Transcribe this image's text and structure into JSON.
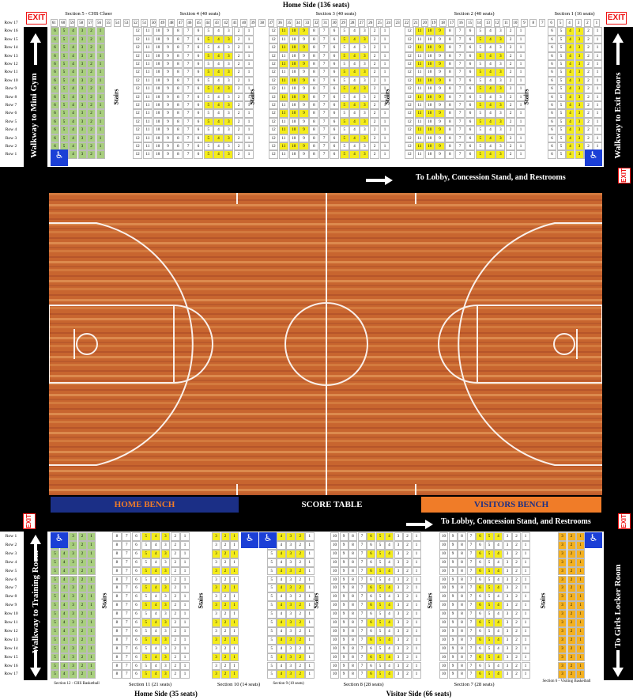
{
  "top": {
    "title": "Home Side (136 seats)",
    "sections": [
      {
        "label": "Section 5 - CHS Cheer"
      },
      {
        "label": "Section 4 (40 seats)"
      },
      {
        "label": "Section 3 (40 seats)"
      },
      {
        "label": "Section 2 (40 seats)"
      },
      {
        "label": "Section 1 (16 seats)"
      }
    ],
    "rows": [
      "Row 17",
      "Row 16",
      "Row 15",
      "Row 14",
      "Row 13",
      "Row 12",
      "Row 11",
      "Row 10",
      "Row 9",
      "Row 8",
      "Row 7",
      "Row 6",
      "Row 5",
      "Row 4",
      "Row 3",
      "Row 2",
      "Row 1"
    ],
    "seat_numbers": [
      "61",
      "60",
      "59",
      "58",
      "57",
      "56",
      "55",
      "54",
      "53",
      "52",
      "51",
      "50",
      "49",
      "48",
      "47",
      "46",
      "45",
      "44",
      "43",
      "42",
      "41",
      "40",
      "39",
      "38",
      "37",
      "36",
      "35",
      "34",
      "33",
      "32",
      "31",
      "30",
      "29",
      "28",
      "27",
      "26",
      "25",
      "24",
      "23",
      "22",
      "21",
      "20",
      "19",
      "18",
      "17",
      "16",
      "15",
      "14",
      "13",
      "12",
      "11",
      "10",
      "9",
      "8",
      "7",
      "6",
      "5",
      "4",
      "3",
      "2",
      "1"
    ],
    "walk_left": "Walkway to Mini Gym",
    "walk_right": "Walkway to Exit Doors",
    "lobby": "To Lobby, Concession Stand, and Restrooms",
    "stairs": "Stairs",
    "exit": "EXIT"
  },
  "court": {
    "home_bench": "HOME BENCH",
    "score_table": "SCORE TABLE",
    "visitors_bench": "VISITORS BENCH",
    "colors": {
      "home_bench": "#1b2f86",
      "visitors_bench": "#f07c28",
      "wood": "#c8652f"
    }
  },
  "bottom": {
    "lobby": "To Lobby, Concession Stand, and Restrooms",
    "walk_left": "Walkway to Training Room",
    "walk_right": "To Girls Locker Room",
    "rows": [
      "Row 1",
      "Row 2",
      "Row 3",
      "Row 4",
      "Row 5",
      "Row 6",
      "Row 7",
      "Row 8",
      "Row 9",
      "Row 10",
      "Row 11",
      "Row 12",
      "Row 13",
      "Row 14",
      "Row 15",
      "Row 16",
      "Row 17"
    ],
    "sections": [
      {
        "label": "Section 12 - CHS Basketball"
      },
      {
        "label": "Section 11 (21 seats)"
      },
      {
        "label": "Section 10 (14 seats)"
      },
      {
        "label": "Section 9 (10 seats)"
      },
      {
        "label": "Section 8 (28 seats)"
      },
      {
        "label": "Section 7 (28 seats)"
      },
      {
        "label": "Section 6 - Visiting Basketball"
      }
    ],
    "home_side": "Home Side (35 seats)",
    "visitor_side": "Visitor Side (66 seats)",
    "stairs": "Stairs",
    "exit": "EXIT"
  }
}
